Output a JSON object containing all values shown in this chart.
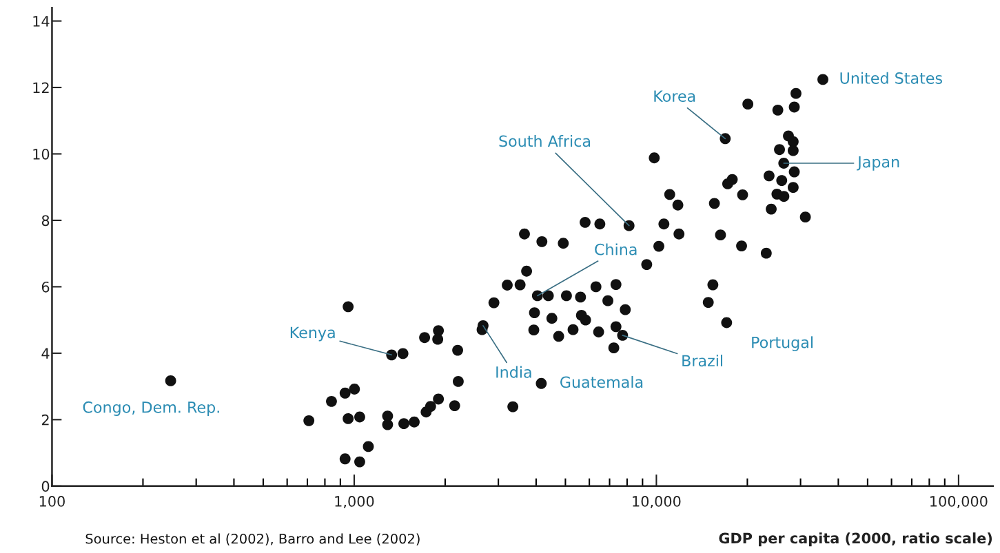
{
  "chart_data": {
    "type": "scatter",
    "xlabel": "GDP per capita (2000, ratio scale)",
    "log": "x",
    "grid": false,
    "marker": "circle",
    "xlim": [
      100,
      130000
    ],
    "ylim": [
      0,
      14.4
    ],
    "xticks": [
      100,
      {
        "value": 200,
        "label": null
      },
      {
        "value": 300,
        "label": null
      },
      {
        "value": 400,
        "label": null
      },
      {
        "value": 500,
        "label": null
      },
      {
        "value": 600,
        "label": null
      },
      {
        "value": 700,
        "label": null
      },
      {
        "value": 800,
        "label": null
      },
      {
        "value": 900,
        "label": null
      },
      {
        "value": 1000,
        "label": "1,000"
      },
      {
        "value": 2000,
        "label": null
      },
      {
        "value": 3000,
        "label": null
      },
      {
        "value": 4000,
        "label": null
      },
      {
        "value": 5000,
        "label": null
      },
      {
        "value": 6000,
        "label": null
      },
      {
        "value": 7000,
        "label": null
      },
      {
        "value": 8000,
        "label": null
      },
      {
        "value": 9000,
        "label": null
      },
      {
        "value": 10000,
        "label": "10,000"
      },
      {
        "value": 20000,
        "label": null
      },
      {
        "value": 30000,
        "label": null
      },
      {
        "value": 40000,
        "label": null
      },
      {
        "value": 50000,
        "label": null
      },
      {
        "value": 60000,
        "label": null
      },
      {
        "value": 70000,
        "label": null
      },
      {
        "value": 80000,
        "label": null
      },
      {
        "value": 90000,
        "label": null
      },
      {
        "value": 100000,
        "label": "100,000"
      }
    ],
    "yticks": [
      0,
      2,
      4,
      6,
      8,
      10,
      12,
      14
    ],
    "series": [
      {
        "color": "#111111",
        "x": [
          247,
          955,
          708,
          841,
          933,
          1002,
          955,
          1043,
          1114,
          933,
          1043,
          11070,
          11780,
          5810,
          6500,
          8120,
          10590,
          11880,
          10190,
          9290,
          3660,
          4180,
          4920,
          3720,
          3210,
          3540,
          2900,
          4040,
          4390,
          5040,
          5610,
          6310,
          7350,
          6910,
          7890,
          3950,
          4510,
          5650,
          5830,
          3930,
          4750,
          5300,
          6440,
          7350,
          7730,
          7230,
          2670,
          2650,
          4160,
          3350,
          2200,
          2210,
          2150,
          1330,
          1450,
          1710,
          1900,
          1890,
          1900,
          1790,
          1730,
          1290,
          1290,
          1460,
          1580,
          35560,
          28970,
          20080,
          25230,
          28600,
          16900,
          27350,
          28360,
          25550,
          28360,
          26400,
          28600,
          23600,
          25990,
          17830,
          17220,
          28360,
          19290,
          25060,
          26420,
          23990,
          31120,
          15560,
          16300,
          19140,
          23100,
          15380,
          14850,
          17080,
          9840
        ],
        "values": [
          3.17,
          5.4,
          1.97,
          2.55,
          2.8,
          2.92,
          2.03,
          2.08,
          1.19,
          0.82,
          0.73,
          8.78,
          8.46,
          7.94,
          7.89,
          7.84,
          7.89,
          7.59,
          7.22,
          6.67,
          7.59,
          7.36,
          7.31,
          6.47,
          6.05,
          6.06,
          5.52,
          5.73,
          5.73,
          5.73,
          5.69,
          6.0,
          6.07,
          5.58,
          5.31,
          5.22,
          5.05,
          5.14,
          5.0,
          4.7,
          4.51,
          4.71,
          4.64,
          4.8,
          4.54,
          4.16,
          4.83,
          4.71,
          3.09,
          2.39,
          4.09,
          3.15,
          2.42,
          3.95,
          3.99,
          4.47,
          4.68,
          4.42,
          2.62,
          2.4,
          2.23,
          2.11,
          1.85,
          1.88,
          1.93,
          12.24,
          11.82,
          11.5,
          11.32,
          11.41,
          10.46,
          10.54,
          10.37,
          10.13,
          10.1,
          9.72,
          9.46,
          9.34,
          9.2,
          9.23,
          9.1,
          8.99,
          8.77,
          8.79,
          8.72,
          8.34,
          8.1,
          8.51,
          7.56,
          7.23,
          7.01,
          6.06,
          5.53,
          4.92,
          9.88
        ]
      }
    ],
    "annotations": [
      {
        "text": "United States",
        "x": 35560,
        "y": 12.24
      },
      {
        "text": "Korea",
        "x": 16900,
        "y": 10.46
      },
      {
        "text": "South Africa",
        "x": 8120,
        "y": 7.84
      },
      {
        "text": "Japan",
        "x": 26400,
        "y": 9.72
      },
      {
        "text": "China",
        "x": 4040,
        "y": 5.73
      },
      {
        "text": "Kenya",
        "x": 1330,
        "y": 3.95
      },
      {
        "text": "India",
        "x": 2670,
        "y": 4.83
      },
      {
        "text": "Brazil",
        "x": 7730,
        "y": 4.54
      },
      {
        "text": "Portugal",
        "x": 17080,
        "y": 4.92
      },
      {
        "text": "Guatemala",
        "x": 4160,
        "y": 3.09
      },
      {
        "text": "Congo, Dem. Rep.",
        "x": 247,
        "y": 3.17
      },
      "Source: Heston et al (2002), Barro and Lee (2002)"
    ]
  }
}
